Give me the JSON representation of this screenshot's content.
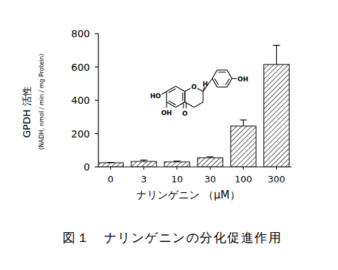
{
  "chart_data": {
    "type": "bar",
    "title": "図１　ナリンゲニンの分化促進作用",
    "y_label": [
      "GPDH 活性",
      "(NADH, nmol / min / mg  Protein)"
    ],
    "x_label": "ナリンゲニン （μM）",
    "categories": [
      "0",
      "3",
      "10",
      "30",
      "100",
      "300"
    ],
    "values": [
      25,
      33,
      30,
      55,
      245,
      615
    ],
    "errors": [
      2,
      8,
      5,
      5,
      37,
      115
    ],
    "color": "#000000",
    "ylim": [
      0,
      800
    ],
    "yticks": [
      0,
      200,
      400,
      600,
      800
    ],
    "grid": false,
    "annotations": [
      "HO",
      "OH",
      "O",
      "H",
      "O",
      "OH"
    ]
  }
}
